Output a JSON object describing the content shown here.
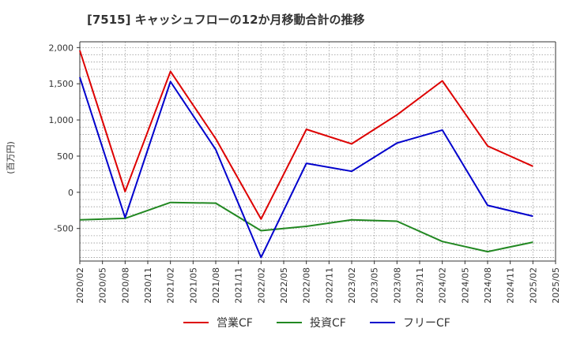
{
  "chart_data": {
    "type": "line",
    "title": "[7515]  キャッシュフローの12か月移動合計の推移",
    "ylabel": "(百万円)",
    "xlabel": "",
    "ylim": [
      -950,
      2080
    ],
    "yticks": [
      2000,
      1500,
      1000,
      500,
      0,
      -500
    ],
    "ytick_labels": [
      "2,000",
      "1,500",
      "1,000",
      "500",
      "0",
      "-500"
    ],
    "x_ticks": [
      "2020/02",
      "2020/05",
      "2020/08",
      "2020/11",
      "2021/02",
      "2021/05",
      "2021/08",
      "2021/11",
      "2022/02",
      "2022/05",
      "2022/08",
      "2022/11",
      "2023/02",
      "2023/05",
      "2023/08",
      "2023/11",
      "2024/02",
      "2024/05",
      "2024/08",
      "2024/11",
      "2025/02",
      "2025/05"
    ],
    "x": [
      "2020/02",
      "2020/08",
      "2021/02",
      "2021/08",
      "2022/02",
      "2022/08",
      "2023/02",
      "2023/08",
      "2024/02",
      "2024/08",
      "2025/02"
    ],
    "grid": true,
    "legend_position": "bottom",
    "series": [
      {
        "name": "営業CF",
        "color": "#dd0000",
        "values": [
          1960,
          10,
          1670,
          740,
          -370,
          870,
          670,
          1070,
          1540,
          640,
          360
        ]
      },
      {
        "name": "投資CF",
        "color": "#228822",
        "values": [
          -380,
          -360,
          -140,
          -150,
          -530,
          -470,
          -380,
          -400,
          -680,
          -820,
          -690
        ]
      },
      {
        "name": "フリーCF",
        "color": "#0000cc",
        "values": [
          1590,
          -350,
          1530,
          590,
          -900,
          400,
          290,
          680,
          860,
          -180,
          -330
        ]
      }
    ]
  }
}
